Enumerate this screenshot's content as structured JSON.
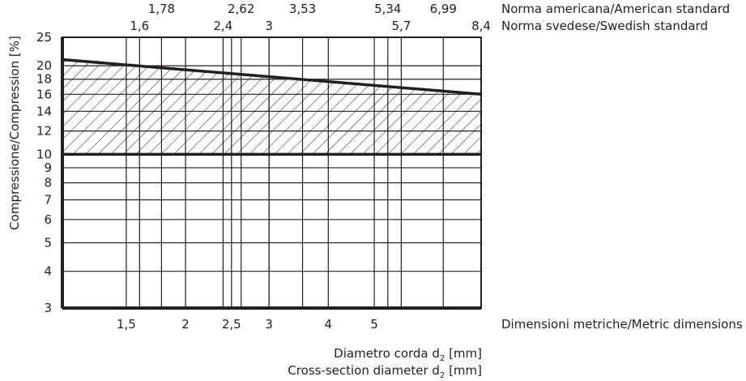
{
  "chart_data": {
    "type": "area",
    "title": "",
    "xlabel": [
      "Diametro corda d",
      "2",
      " [mm]"
    ],
    "xlabel2": [
      "Cross-section diameter d",
      "2",
      " [mm]"
    ],
    "ylabel": "Compressione/Compression [%]",
    "xscale": "log",
    "yscale": "log",
    "xlim": [
      1.1,
      8.4
    ],
    "ylim": [
      3,
      25
    ],
    "grid": true,
    "y_ticks": [
      "3",
      "4",
      "5",
      "6",
      "7",
      "8",
      "9",
      "10",
      "12",
      "14",
      "16",
      "18",
      "20",
      "25"
    ],
    "y_tick_values": [
      3,
      4,
      5,
      6,
      7,
      8,
      9,
      10,
      12,
      14,
      16,
      18,
      20,
      25
    ],
    "axes": [
      {
        "name": "Dimensioni metriche/Metric dimensions",
        "position": "bottom",
        "labels": [
          "1,5",
          "2",
          "2,5",
          "3",
          "4",
          "5"
        ],
        "values": [
          1.5,
          2,
          2.5,
          3,
          4,
          5
        ]
      },
      {
        "name": "Norma svedese/Swedish standard",
        "position": "top-inner",
        "labels": [
          "1,6",
          "2,4",
          "3",
          "5,7",
          "8,4"
        ],
        "values": [
          1.6,
          2.4,
          3,
          5.7,
          8.4
        ]
      },
      {
        "name": "Norma americana/American standard",
        "position": "top-outer",
        "labels": [
          "1,78",
          "2,62",
          "3,53",
          "5,34",
          "6,99"
        ],
        "values": [
          1.78,
          2.62,
          3.53,
          5.34,
          6.99
        ]
      }
    ],
    "series": [
      {
        "role": "upper-bound",
        "points": [
          [
            1.1,
            21
          ],
          [
            8.4,
            16
          ]
        ]
      },
      {
        "role": "lower-bound",
        "points": [
          [
            1.1,
            10
          ],
          [
            8.4,
            10
          ]
        ]
      }
    ],
    "shading": "hatched region between bounds"
  }
}
